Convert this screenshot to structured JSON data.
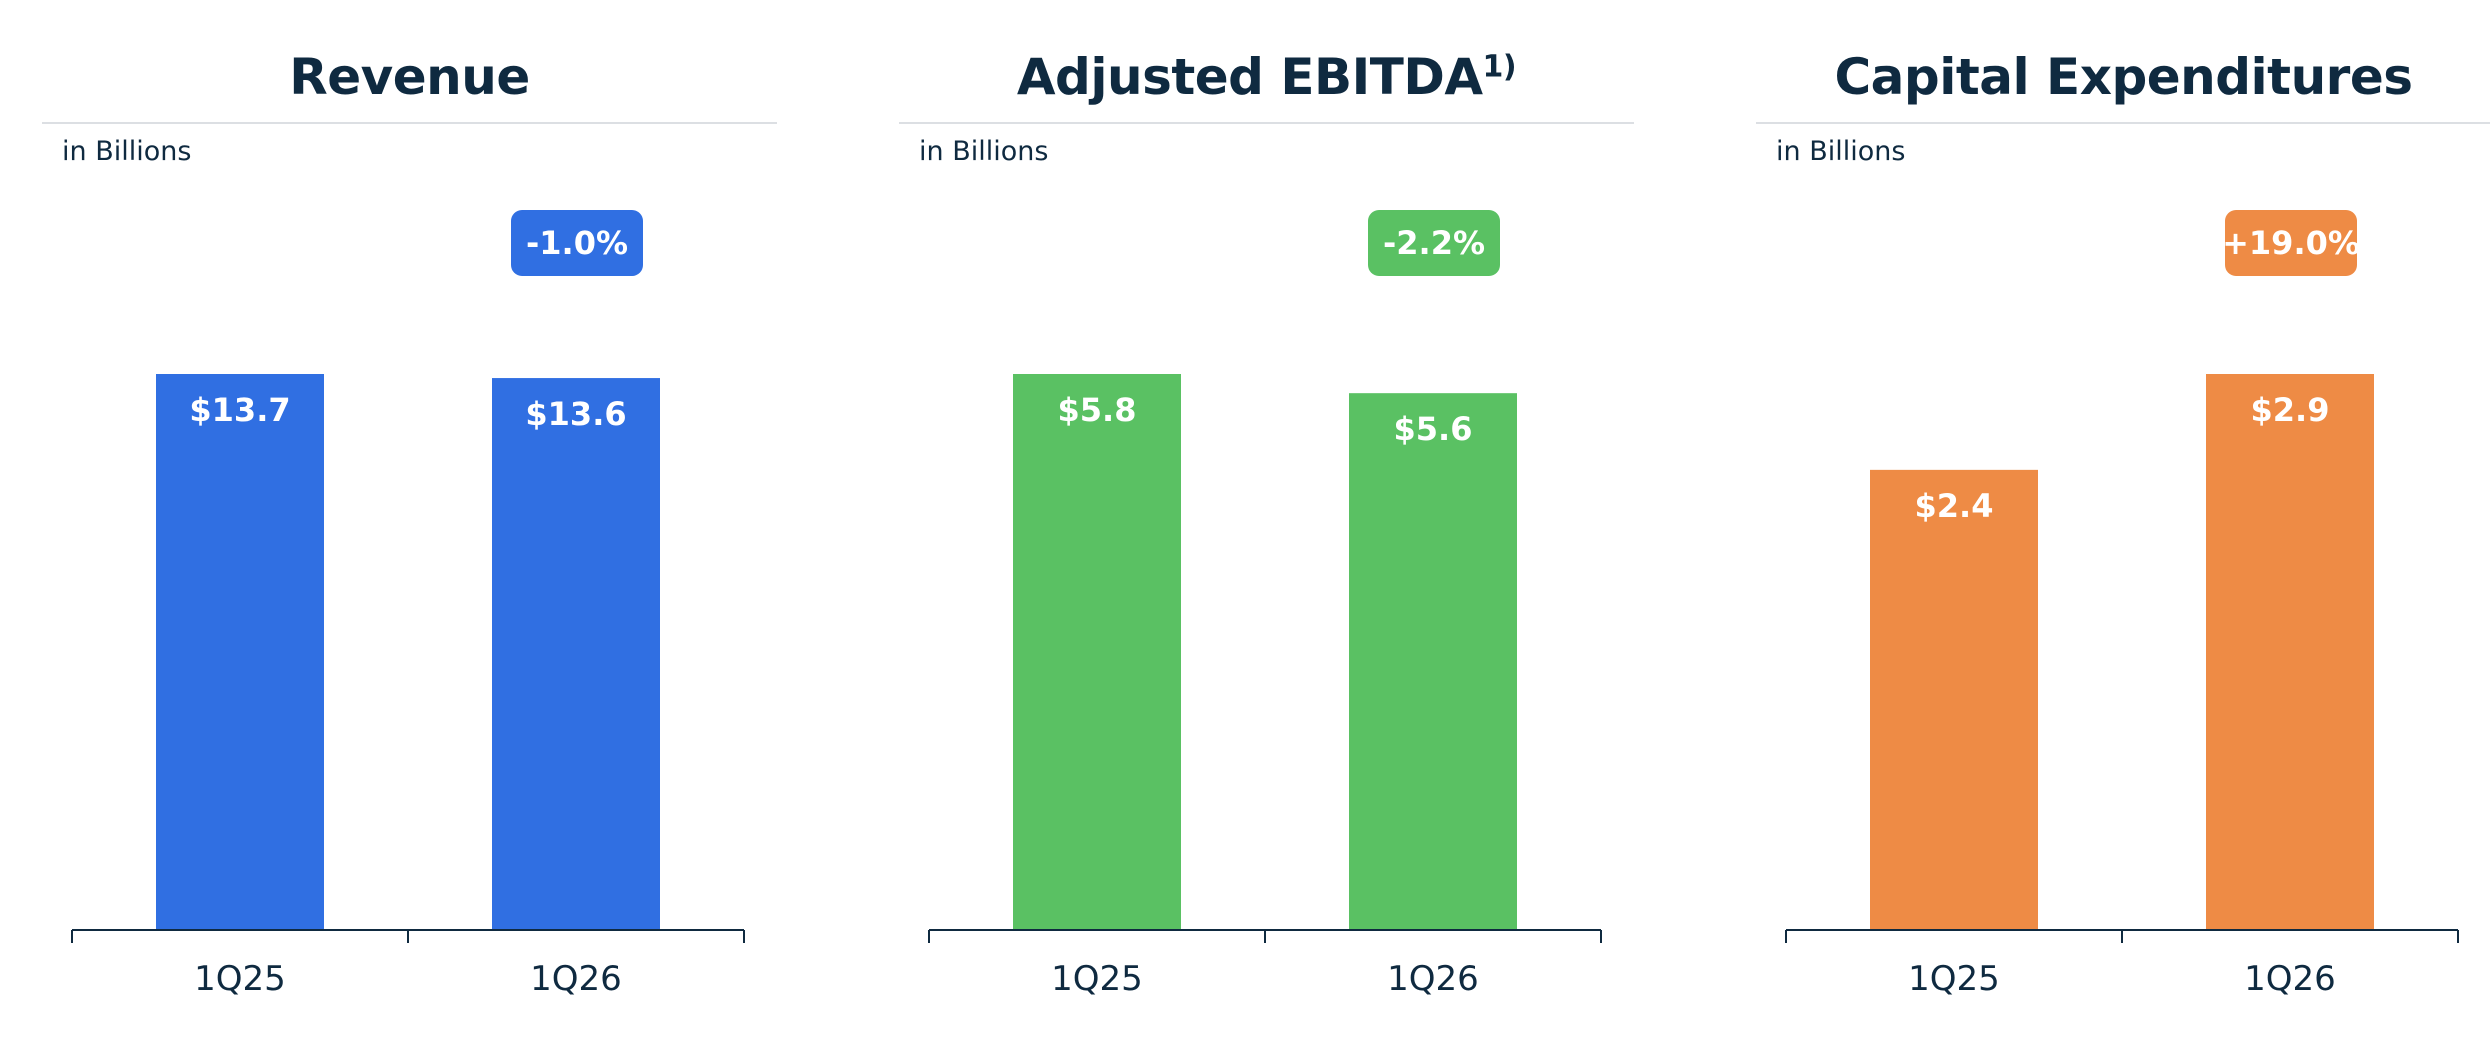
{
  "chart_data": [
    {
      "type": "bar",
      "title": "Revenue",
      "title_superscript": "",
      "unit_label": "in Billions",
      "categories": [
        "1Q25",
        "1Q26"
      ],
      "values": [
        13.7,
        13.6
      ],
      "value_labels": [
        "$13.7",
        "$13.6"
      ],
      "change_label": "-1.0%",
      "color": "#306FE2",
      "ylim": [
        0,
        13.7
      ],
      "grid": false,
      "legend": "none"
    },
    {
      "type": "bar",
      "title": "Adjusted EBITDA",
      "title_superscript": "1)",
      "unit_label": "in Billions",
      "categories": [
        "1Q25",
        "1Q26"
      ],
      "values": [
        5.8,
        5.6
      ],
      "value_labels": [
        "$5.8",
        "$5.6"
      ],
      "change_label": "-2.2%",
      "color": "#5AC163",
      "ylim": [
        0,
        5.8
      ],
      "grid": false,
      "legend": "none"
    },
    {
      "type": "bar",
      "title": "Capital Expenditures",
      "title_superscript": "",
      "unit_label": "in Billions",
      "categories": [
        "1Q25",
        "1Q26"
      ],
      "values": [
        2.4,
        2.9
      ],
      "value_labels": [
        "$2.4",
        "$2.9"
      ],
      "change_label": "+19.0%",
      "color": "#EE8B45",
      "ylim": [
        0,
        2.9
      ],
      "grid": false,
      "legend": "none"
    }
  ]
}
